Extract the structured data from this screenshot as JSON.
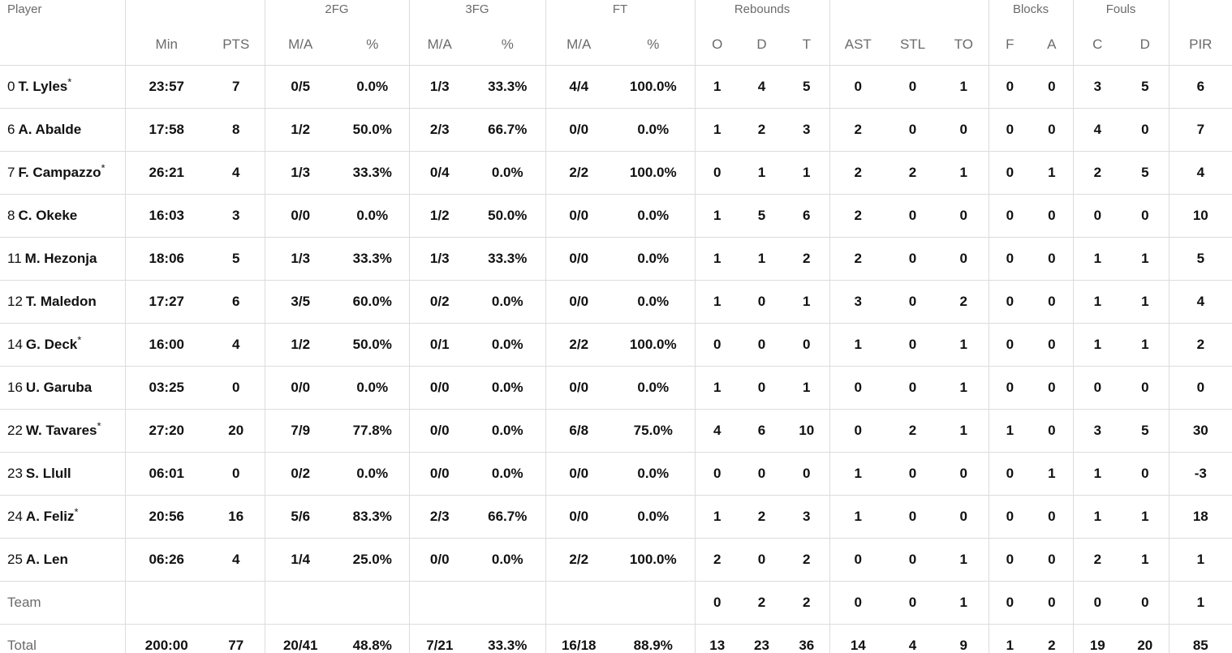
{
  "header": {
    "groups": {
      "fg2": "2FG",
      "fg3": "3FG",
      "ft": "FT",
      "rebounds": "Rebounds",
      "blocks": "Blocks",
      "fouls": "Fouls"
    },
    "cols": {
      "player": "Player",
      "min": "Min",
      "pts": "PTS",
      "fg2_ma": "M/A",
      "fg2_pct": "%",
      "fg3_ma": "M/A",
      "fg3_pct": "%",
      "ft_ma": "M/A",
      "ft_pct": "%",
      "reb_o": "O",
      "reb_d": "D",
      "reb_t": "T",
      "ast": "AST",
      "stl": "STL",
      "to": "TO",
      "blk_f": "F",
      "blk_a": "A",
      "foul_c": "C",
      "foul_d": "D",
      "pir": "PIR"
    }
  },
  "players": [
    {
      "num": "0",
      "name": "T. Lyles",
      "starter": "*",
      "min": "23:57",
      "pts": "7",
      "fg2_ma": "0/5",
      "fg2_pct": "0.0%",
      "fg3_ma": "1/3",
      "fg3_pct": "33.3%",
      "ft_ma": "4/4",
      "ft_pct": "100.0%",
      "reb_o": "1",
      "reb_d": "4",
      "reb_t": "5",
      "ast": "0",
      "stl": "0",
      "to": "1",
      "blk_f": "0",
      "blk_a": "0",
      "foul_c": "3",
      "foul_d": "5",
      "pir": "6"
    },
    {
      "num": "6",
      "name": "A. Abalde",
      "starter": "",
      "min": "17:58",
      "pts": "8",
      "fg2_ma": "1/2",
      "fg2_pct": "50.0%",
      "fg3_ma": "2/3",
      "fg3_pct": "66.7%",
      "ft_ma": "0/0",
      "ft_pct": "0.0%",
      "reb_o": "1",
      "reb_d": "2",
      "reb_t": "3",
      "ast": "2",
      "stl": "0",
      "to": "0",
      "blk_f": "0",
      "blk_a": "0",
      "foul_c": "4",
      "foul_d": "0",
      "pir": "7"
    },
    {
      "num": "7",
      "name": "F. Campazzo",
      "starter": "*",
      "min": "26:21",
      "pts": "4",
      "fg2_ma": "1/3",
      "fg2_pct": "33.3%",
      "fg3_ma": "0/4",
      "fg3_pct": "0.0%",
      "ft_ma": "2/2",
      "ft_pct": "100.0%",
      "reb_o": "0",
      "reb_d": "1",
      "reb_t": "1",
      "ast": "2",
      "stl": "2",
      "to": "1",
      "blk_f": "0",
      "blk_a": "1",
      "foul_c": "2",
      "foul_d": "5",
      "pir": "4"
    },
    {
      "num": "8",
      "name": "C. Okeke",
      "starter": "",
      "min": "16:03",
      "pts": "3",
      "fg2_ma": "0/0",
      "fg2_pct": "0.0%",
      "fg3_ma": "1/2",
      "fg3_pct": "50.0%",
      "ft_ma": "0/0",
      "ft_pct": "0.0%",
      "reb_o": "1",
      "reb_d": "5",
      "reb_t": "6",
      "ast": "2",
      "stl": "0",
      "to": "0",
      "blk_f": "0",
      "blk_a": "0",
      "foul_c": "0",
      "foul_d": "0",
      "pir": "10"
    },
    {
      "num": "11",
      "name": "M. Hezonja",
      "starter": "",
      "min": "18:06",
      "pts": "5",
      "fg2_ma": "1/3",
      "fg2_pct": "33.3%",
      "fg3_ma": "1/3",
      "fg3_pct": "33.3%",
      "ft_ma": "0/0",
      "ft_pct": "0.0%",
      "reb_o": "1",
      "reb_d": "1",
      "reb_t": "2",
      "ast": "2",
      "stl": "0",
      "to": "0",
      "blk_f": "0",
      "blk_a": "0",
      "foul_c": "1",
      "foul_d": "1",
      "pir": "5"
    },
    {
      "num": "12",
      "name": "T. Maledon",
      "starter": "",
      "min": "17:27",
      "pts": "6",
      "fg2_ma": "3/5",
      "fg2_pct": "60.0%",
      "fg3_ma": "0/2",
      "fg3_pct": "0.0%",
      "ft_ma": "0/0",
      "ft_pct": "0.0%",
      "reb_o": "1",
      "reb_d": "0",
      "reb_t": "1",
      "ast": "3",
      "stl": "0",
      "to": "2",
      "blk_f": "0",
      "blk_a": "0",
      "foul_c": "1",
      "foul_d": "1",
      "pir": "4"
    },
    {
      "num": "14",
      "name": "G. Deck",
      "starter": "*",
      "min": "16:00",
      "pts": "4",
      "fg2_ma": "1/2",
      "fg2_pct": "50.0%",
      "fg3_ma": "0/1",
      "fg3_pct": "0.0%",
      "ft_ma": "2/2",
      "ft_pct": "100.0%",
      "reb_o": "0",
      "reb_d": "0",
      "reb_t": "0",
      "ast": "1",
      "stl": "0",
      "to": "1",
      "blk_f": "0",
      "blk_a": "0",
      "foul_c": "1",
      "foul_d": "1",
      "pir": "2"
    },
    {
      "num": "16",
      "name": "U. Garuba",
      "starter": "",
      "min": "03:25",
      "pts": "0",
      "fg2_ma": "0/0",
      "fg2_pct": "0.0%",
      "fg3_ma": "0/0",
      "fg3_pct": "0.0%",
      "ft_ma": "0/0",
      "ft_pct": "0.0%",
      "reb_o": "1",
      "reb_d": "0",
      "reb_t": "1",
      "ast": "0",
      "stl": "0",
      "to": "1",
      "blk_f": "0",
      "blk_a": "0",
      "foul_c": "0",
      "foul_d": "0",
      "pir": "0"
    },
    {
      "num": "22",
      "name": "W. Tavares",
      "starter": "*",
      "min": "27:20",
      "pts": "20",
      "fg2_ma": "7/9",
      "fg2_pct": "77.8%",
      "fg3_ma": "0/0",
      "fg3_pct": "0.0%",
      "ft_ma": "6/8",
      "ft_pct": "75.0%",
      "reb_o": "4",
      "reb_d": "6",
      "reb_t": "10",
      "ast": "0",
      "stl": "2",
      "to": "1",
      "blk_f": "1",
      "blk_a": "0",
      "foul_c": "3",
      "foul_d": "5",
      "pir": "30"
    },
    {
      "num": "23",
      "name": "S. Llull",
      "starter": "",
      "min": "06:01",
      "pts": "0",
      "fg2_ma": "0/2",
      "fg2_pct": "0.0%",
      "fg3_ma": "0/0",
      "fg3_pct": "0.0%",
      "ft_ma": "0/0",
      "ft_pct": "0.0%",
      "reb_o": "0",
      "reb_d": "0",
      "reb_t": "0",
      "ast": "1",
      "stl": "0",
      "to": "0",
      "blk_f": "0",
      "blk_a": "1",
      "foul_c": "1",
      "foul_d": "0",
      "pir": "-3"
    },
    {
      "num": "24",
      "name": "A. Feliz",
      "starter": "*",
      "min": "20:56",
      "pts": "16",
      "fg2_ma": "5/6",
      "fg2_pct": "83.3%",
      "fg3_ma": "2/3",
      "fg3_pct": "66.7%",
      "ft_ma": "0/0",
      "ft_pct": "0.0%",
      "reb_o": "1",
      "reb_d": "2",
      "reb_t": "3",
      "ast": "1",
      "stl": "0",
      "to": "0",
      "blk_f": "0",
      "blk_a": "0",
      "foul_c": "1",
      "foul_d": "1",
      "pir": "18"
    },
    {
      "num": "25",
      "name": "A. Len",
      "starter": "",
      "min": "06:26",
      "pts": "4",
      "fg2_ma": "1/4",
      "fg2_pct": "25.0%",
      "fg3_ma": "0/0",
      "fg3_pct": "0.0%",
      "ft_ma": "2/2",
      "ft_pct": "100.0%",
      "reb_o": "2",
      "reb_d": "0",
      "reb_t": "2",
      "ast": "0",
      "stl": "0",
      "to": "1",
      "blk_f": "0",
      "blk_a": "0",
      "foul_c": "2",
      "foul_d": "1",
      "pir": "1"
    }
  ],
  "team": {
    "label": "Team",
    "min": "",
    "pts": "",
    "fg2_ma": "",
    "fg2_pct": "",
    "fg3_ma": "",
    "fg3_pct": "",
    "ft_ma": "",
    "ft_pct": "",
    "reb_o": "0",
    "reb_d": "2",
    "reb_t": "2",
    "ast": "0",
    "stl": "0",
    "to": "1",
    "blk_f": "0",
    "blk_a": "0",
    "foul_c": "0",
    "foul_d": "0",
    "pir": "1"
  },
  "total": {
    "label": "Total",
    "min": "200:00",
    "pts": "77",
    "fg2_ma": "20/41",
    "fg2_pct": "48.8%",
    "fg3_ma": "7/21",
    "fg3_pct": "33.3%",
    "ft_ma": "16/18",
    "ft_pct": "88.9%",
    "reb_o": "13",
    "reb_d": "23",
    "reb_t": "36",
    "ast": "14",
    "stl": "4",
    "to": "9",
    "blk_f": "1",
    "blk_a": "2",
    "foul_c": "19",
    "foul_d": "20",
    "pir": "85"
  }
}
